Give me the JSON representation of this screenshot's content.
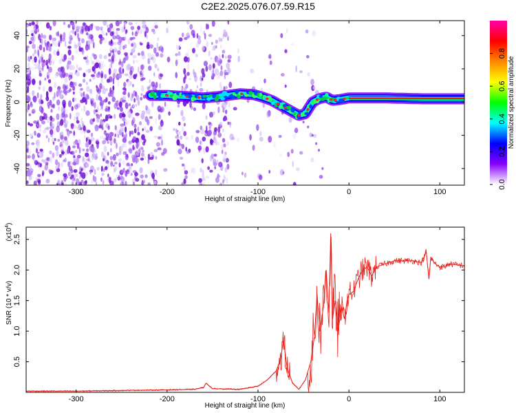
{
  "title": "C2E2.2025.076.07.59.R15",
  "chart_data": [
    {
      "type": "heatmap",
      "xlabel": "Height of straight line (km)",
      "ylabel": "Frequency (Hz)",
      "xlim": [
        -355,
        127
      ],
      "ylim": [
        -50,
        49
      ],
      "x_ticks": [
        -300,
        -200,
        -100,
        0,
        100
      ],
      "y_ticks": [
        -40,
        -20,
        0,
        20,
        40
      ],
      "colorbar": {
        "label": "Normalized spectral amplitude",
        "range": [
          0,
          1
        ],
        "ticks": [
          "0.0",
          "0.2",
          "0.4",
          "0.6",
          "0.8"
        ],
        "colors": [
          "#ffffff",
          "#8800ff",
          "#0000ff",
          "#00ffff",
          "#00ff00",
          "#ffff00",
          "#ff8800",
          "#ff0000",
          "#ff00aa"
        ]
      },
      "signal_ridge": {
        "x": [
          -218,
          -200,
          -185,
          -170,
          -160,
          -140,
          -120,
          -105,
          -95,
          -85,
          -75,
          -65,
          -55,
          -48,
          -40,
          -33,
          -25,
          -18,
          -10,
          -5,
          0,
          40,
          80,
          127
        ],
        "freq": [
          4,
          4,
          3.5,
          3,
          2.5,
          3.5,
          5,
          4.5,
          3,
          1,
          -2,
          -5,
          -8,
          -7,
          0,
          2,
          3,
          1,
          1.5,
          2,
          2.5,
          2.5,
          2,
          2
        ]
      },
      "noise_region_x": [
        -355,
        -30
      ]
    },
    {
      "type": "line",
      "xlabel": "Height of straight line (km)",
      "ylabel": "SNR (10 * v/v)",
      "y_multiplier": "(x10",
      "y_multiplier_exp": "4",
      "xlim": [
        -355,
        127
      ],
      "ylim": [
        0,
        2.7
      ],
      "x_ticks": [
        -300,
        -200,
        -100,
        0,
        100
      ],
      "y_ticks": [
        "0.5",
        "1.0",
        "1.5",
        "2.0",
        "2.5"
      ],
      "color": "#e8201a",
      "series": [
        {
          "x": [
            -355,
            -300,
            -250,
            -200,
            -170,
            -160,
            -157,
            -150,
            -120,
            -100,
            -90,
            -80,
            -75,
            -72,
            -68,
            -62,
            -55,
            -48,
            -42,
            -38,
            -35,
            -32,
            -28,
            -25,
            -22,
            -20,
            -18,
            -15,
            -12,
            -8,
            -5,
            -2,
            0,
            5,
            10,
            15,
            20,
            25,
            30,
            40,
            50,
            60,
            70,
            80,
            85,
            88,
            90,
            95,
            100,
            105,
            110,
            120,
            127
          ],
          "y": [
            0.02,
            0.02,
            0.03,
            0.04,
            0.05,
            0.08,
            0.15,
            0.06,
            0.05,
            0.1,
            0.2,
            0.35,
            0.55,
            0.85,
            0.4,
            0.15,
            0.05,
            0.2,
            0.5,
            0.9,
            1.6,
            1.0,
            1.4,
            2.0,
            1.3,
            2.6,
            1.2,
            1.5,
            1.0,
            1.4,
            1.2,
            1.5,
            1.6,
            1.65,
            1.85,
            2.0,
            2.05,
            1.9,
            2.05,
            2.1,
            2.15,
            2.15,
            2.15,
            2.12,
            2.3,
            1.85,
            2.2,
            2.1,
            2.05,
            2.05,
            2.1,
            2.08,
            2.07
          ]
        }
      ]
    }
  ]
}
